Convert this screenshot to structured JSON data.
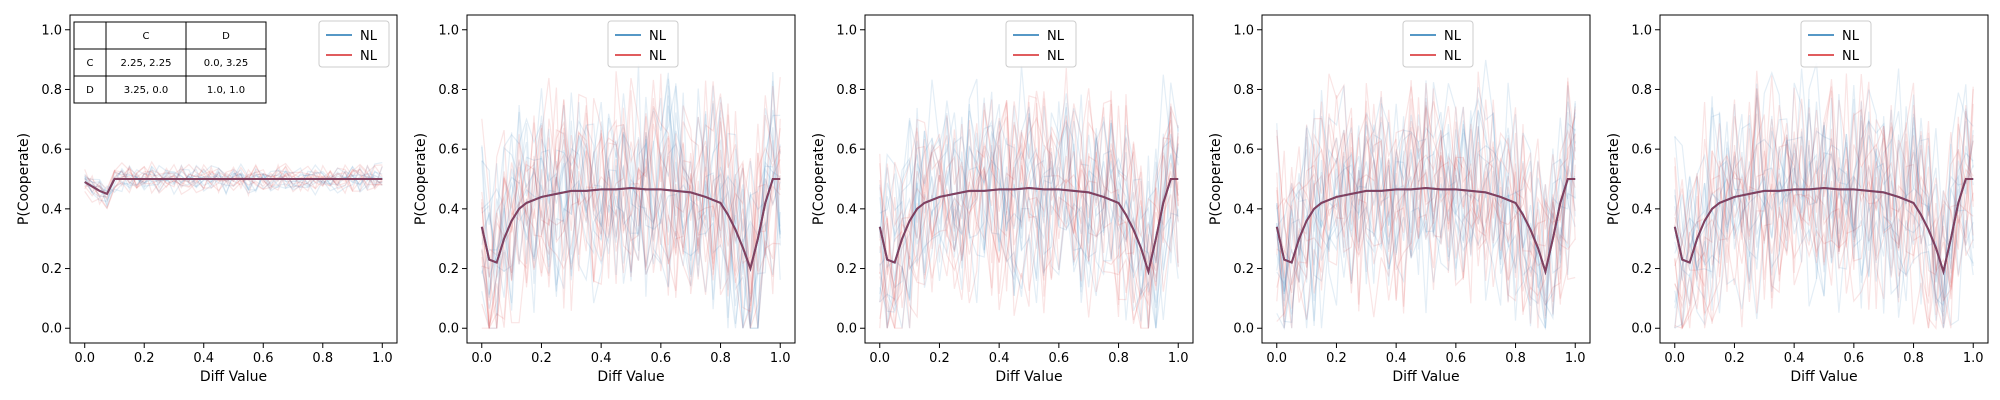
{
  "colors": {
    "blue": "#1f77b4",
    "red": "#d62728",
    "purple": "#8c3a55"
  },
  "payoff_table": {
    "header": [
      "",
      "C",
      "D"
    ],
    "rows": [
      [
        "C",
        "2.25, 2.25",
        "0.0, 3.25"
      ],
      [
        "D",
        "3.25, 0.0",
        "1.0, 1.0"
      ]
    ]
  },
  "chart_data": [
    {
      "type": "line",
      "xlabel": "Diff Value",
      "ylabel": "P(Cooperate)",
      "xlim": [
        0,
        1
      ],
      "ylim": [
        0,
        1
      ],
      "xticks": [
        "0.0",
        "0.2",
        "0.4",
        "0.6",
        "0.8",
        "1.0"
      ],
      "yticks": [
        "0.0",
        "0.2",
        "0.4",
        "0.6",
        "0.8",
        "1.0"
      ],
      "legend": {
        "position": "top-right",
        "entries": [
          "NL",
          "NL"
        ]
      },
      "x": [
        0.0,
        0.05,
        0.075,
        0.1,
        0.2,
        0.3,
        0.4,
        0.5,
        0.6,
        0.7,
        0.8,
        0.9,
        1.0
      ],
      "series": [
        {
          "name": "NL",
          "color": "blue",
          "values": [
            0.49,
            0.46,
            0.45,
            0.5,
            0.5,
            0.5,
            0.5,
            0.5,
            0.5,
            0.5,
            0.5,
            0.5,
            0.5
          ]
        },
        {
          "name": "NL",
          "color": "red",
          "values": [
            0.49,
            0.46,
            0.45,
            0.5,
            0.5,
            0.5,
            0.5,
            0.5,
            0.5,
            0.5,
            0.5,
            0.5,
            0.5
          ]
        }
      ],
      "noise": {
        "center_mode": "flat",
        "amplitude": 0.06,
        "count": 18
      }
    },
    {
      "type": "line",
      "xlabel": "Diff Value",
      "ylabel": "P(Cooperate)",
      "xlim": [
        0,
        1
      ],
      "ylim": [
        0,
        1
      ],
      "xticks": [
        "0.0",
        "0.2",
        "0.4",
        "0.6",
        "0.8",
        "1.0"
      ],
      "yticks": [
        "0.0",
        "0.2",
        "0.4",
        "0.6",
        "0.8",
        "1.0"
      ],
      "legend": {
        "position": "top-center",
        "entries": [
          "NL",
          "NL"
        ]
      },
      "x": [
        0.0,
        0.025,
        0.05,
        0.075,
        0.1,
        0.125,
        0.15,
        0.2,
        0.25,
        0.3,
        0.35,
        0.4,
        0.45,
        0.5,
        0.55,
        0.6,
        0.65,
        0.7,
        0.75,
        0.8,
        0.825,
        0.85,
        0.875,
        0.9,
        0.925,
        0.95,
        0.975,
        1.0
      ],
      "series": [
        {
          "name": "NL",
          "color": "blue",
          "values": [
            0.34,
            0.23,
            0.22,
            0.3,
            0.36,
            0.4,
            0.42,
            0.44,
            0.45,
            0.46,
            0.46,
            0.465,
            0.465,
            0.47,
            0.465,
            0.465,
            0.46,
            0.455,
            0.44,
            0.42,
            0.38,
            0.33,
            0.27,
            0.2,
            0.3,
            0.42,
            0.5,
            0.5
          ]
        },
        {
          "name": "NL",
          "color": "red",
          "values": [
            0.34,
            0.23,
            0.22,
            0.3,
            0.36,
            0.4,
            0.42,
            0.44,
            0.45,
            0.46,
            0.46,
            0.465,
            0.465,
            0.47,
            0.465,
            0.465,
            0.46,
            0.455,
            0.44,
            0.42,
            0.38,
            0.33,
            0.27,
            0.2,
            0.3,
            0.42,
            0.5,
            0.5
          ]
        }
      ],
      "noise": {
        "center_mode": "mean",
        "amplitude": 0.45,
        "count": 26
      }
    },
    {
      "type": "line",
      "xlabel": "Diff Value",
      "ylabel": "P(Cooperate)",
      "xlim": [
        0,
        1
      ],
      "ylim": [
        0,
        1
      ],
      "xticks": [
        "0.0",
        "0.2",
        "0.4",
        "0.6",
        "0.8",
        "1.0"
      ],
      "yticks": [
        "0.0",
        "0.2",
        "0.4",
        "0.6",
        "0.8",
        "1.0"
      ],
      "legend": {
        "position": "top-center",
        "entries": [
          "NL",
          "NL"
        ]
      },
      "x": [
        0.0,
        0.025,
        0.05,
        0.075,
        0.1,
        0.125,
        0.15,
        0.2,
        0.25,
        0.3,
        0.35,
        0.4,
        0.45,
        0.5,
        0.55,
        0.6,
        0.65,
        0.7,
        0.75,
        0.8,
        0.825,
        0.85,
        0.875,
        0.9,
        0.925,
        0.95,
        0.975,
        1.0
      ],
      "series": [
        {
          "name": "NL",
          "color": "blue",
          "values": [
            0.34,
            0.23,
            0.22,
            0.3,
            0.36,
            0.4,
            0.42,
            0.44,
            0.45,
            0.46,
            0.46,
            0.465,
            0.465,
            0.47,
            0.465,
            0.465,
            0.46,
            0.455,
            0.44,
            0.42,
            0.38,
            0.33,
            0.27,
            0.19,
            0.3,
            0.42,
            0.5,
            0.5
          ]
        },
        {
          "name": "NL",
          "color": "red",
          "values": [
            0.34,
            0.23,
            0.22,
            0.3,
            0.36,
            0.4,
            0.42,
            0.44,
            0.45,
            0.46,
            0.46,
            0.465,
            0.465,
            0.47,
            0.465,
            0.465,
            0.46,
            0.455,
            0.44,
            0.42,
            0.38,
            0.33,
            0.27,
            0.19,
            0.3,
            0.42,
            0.5,
            0.5
          ]
        }
      ],
      "noise": {
        "center_mode": "mean",
        "amplitude": 0.45,
        "count": 26
      }
    },
    {
      "type": "line",
      "xlabel": "Diff Value",
      "ylabel": "P(Cooperate)",
      "xlim": [
        0,
        1
      ],
      "ylim": [
        0,
        1
      ],
      "xticks": [
        "0.0",
        "0.2",
        "0.4",
        "0.6",
        "0.8",
        "1.0"
      ],
      "yticks": [
        "0.0",
        "0.2",
        "0.4",
        "0.6",
        "0.8",
        "1.0"
      ],
      "legend": {
        "position": "top-center",
        "entries": [
          "NL",
          "NL"
        ]
      },
      "x": [
        0.0,
        0.025,
        0.05,
        0.075,
        0.1,
        0.125,
        0.15,
        0.2,
        0.25,
        0.3,
        0.35,
        0.4,
        0.45,
        0.5,
        0.55,
        0.6,
        0.65,
        0.7,
        0.75,
        0.8,
        0.825,
        0.85,
        0.875,
        0.9,
        0.925,
        0.95,
        0.975,
        1.0
      ],
      "series": [
        {
          "name": "NL",
          "color": "blue",
          "values": [
            0.34,
            0.23,
            0.22,
            0.3,
            0.36,
            0.4,
            0.42,
            0.44,
            0.45,
            0.46,
            0.46,
            0.465,
            0.465,
            0.47,
            0.465,
            0.465,
            0.46,
            0.455,
            0.44,
            0.42,
            0.38,
            0.33,
            0.27,
            0.19,
            0.3,
            0.42,
            0.5,
            0.5
          ]
        },
        {
          "name": "NL",
          "color": "red",
          "values": [
            0.34,
            0.23,
            0.22,
            0.3,
            0.36,
            0.4,
            0.42,
            0.44,
            0.45,
            0.46,
            0.46,
            0.465,
            0.465,
            0.47,
            0.465,
            0.465,
            0.46,
            0.455,
            0.44,
            0.42,
            0.38,
            0.33,
            0.27,
            0.19,
            0.3,
            0.42,
            0.5,
            0.5
          ]
        }
      ],
      "noise": {
        "center_mode": "mean",
        "amplitude": 0.45,
        "count": 26
      }
    },
    {
      "type": "line",
      "xlabel": "Diff Value",
      "ylabel": "P(Cooperate)",
      "xlim": [
        0,
        1
      ],
      "ylim": [
        0,
        1
      ],
      "xticks": [
        "0.0",
        "0.2",
        "0.4",
        "0.6",
        "0.8",
        "1.0"
      ],
      "yticks": [
        "0.0",
        "0.2",
        "0.4",
        "0.6",
        "0.8",
        "1.0"
      ],
      "legend": {
        "position": "top-center",
        "entries": [
          "NL",
          "NL"
        ]
      },
      "x": [
        0.0,
        0.025,
        0.05,
        0.075,
        0.1,
        0.125,
        0.15,
        0.2,
        0.25,
        0.3,
        0.35,
        0.4,
        0.45,
        0.5,
        0.55,
        0.6,
        0.65,
        0.7,
        0.75,
        0.8,
        0.825,
        0.85,
        0.875,
        0.9,
        0.925,
        0.95,
        0.975,
        1.0
      ],
      "series": [
        {
          "name": "NL",
          "color": "blue",
          "values": [
            0.34,
            0.23,
            0.22,
            0.3,
            0.36,
            0.4,
            0.42,
            0.44,
            0.45,
            0.46,
            0.46,
            0.465,
            0.465,
            0.47,
            0.465,
            0.465,
            0.46,
            0.455,
            0.44,
            0.42,
            0.38,
            0.33,
            0.27,
            0.19,
            0.3,
            0.42,
            0.5,
            0.5
          ]
        },
        {
          "name": "NL",
          "color": "red",
          "values": [
            0.34,
            0.23,
            0.22,
            0.3,
            0.36,
            0.4,
            0.42,
            0.44,
            0.45,
            0.46,
            0.46,
            0.465,
            0.465,
            0.47,
            0.465,
            0.465,
            0.46,
            0.455,
            0.44,
            0.42,
            0.38,
            0.33,
            0.27,
            0.19,
            0.3,
            0.42,
            0.5,
            0.5
          ]
        }
      ],
      "noise": {
        "center_mode": "mean",
        "amplitude": 0.45,
        "count": 26
      }
    }
  ]
}
